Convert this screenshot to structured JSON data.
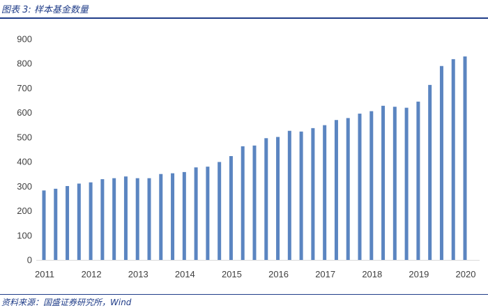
{
  "figure": {
    "title": "图表 3:  样本基金数量",
    "source": "资料来源：国盛证券研究所，Wind"
  },
  "colors": {
    "bar": "#5b85c1",
    "axis": "#d9d9d9",
    "accent": "#1f3c88"
  },
  "chart_data": {
    "type": "bar",
    "title": "",
    "xlabel": "",
    "ylabel": "",
    "ylim": [
      0,
      900
    ],
    "yticks": [
      0,
      100,
      200,
      300,
      400,
      500,
      600,
      700,
      800,
      900
    ],
    "xtick_labels": [
      "2011",
      "2012",
      "2013",
      "2014",
      "2015",
      "2016",
      "2017",
      "2018",
      "2019",
      "2020"
    ],
    "grid": false,
    "legend": "none",
    "values": [
      283,
      290,
      301,
      311,
      316,
      329,
      333,
      340,
      333,
      333,
      350,
      353,
      358,
      377,
      380,
      399,
      423,
      463,
      466,
      496,
      501,
      526,
      523,
      537,
      549,
      570,
      578,
      596,
      606,
      628,
      624,
      620,
      645,
      713,
      790,
      818,
      829
    ]
  }
}
